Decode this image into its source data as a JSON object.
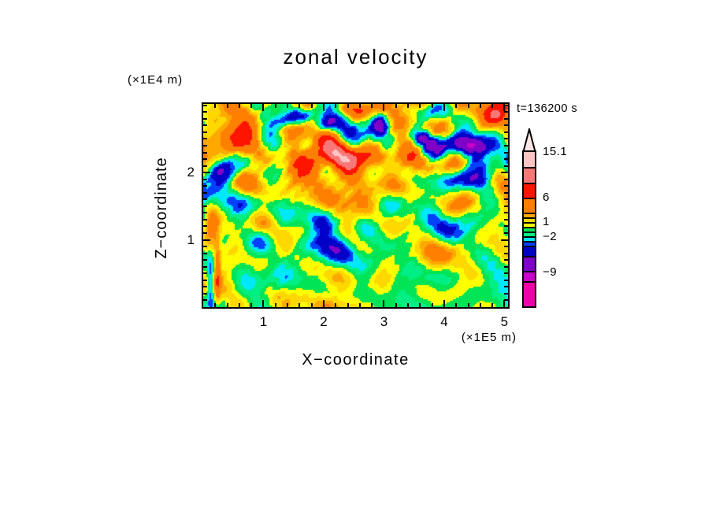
{
  "time_label": "t=136200 s",
  "chart_data": {
    "type": "filled_contour",
    "title": "zonal velocity",
    "xlabel": "X−coordinate",
    "ylabel": "Z−coordinate",
    "x_axis": {
      "unit": "(×1E5 m)",
      "range": [
        0,
        5.06
      ],
      "major_ticks": [
        1,
        2,
        3,
        4,
        5
      ],
      "minor_step": 0.2
    },
    "z_axis": {
      "unit": "(×1E4 m)",
      "range": [
        0,
        3.02
      ],
      "major_ticks": [
        1,
        2
      ],
      "minor_step": 0.1
    },
    "grid": false,
    "legend_position": "right-colorbar",
    "colorbar_max": 15.1,
    "colorbar_min": -16,
    "levels": [
      -11,
      -9,
      -6,
      -4,
      -3,
      -2,
      -1,
      0,
      1,
      2,
      3,
      6,
      9,
      12.1
    ],
    "colors": [
      "#f000a8",
      "#c800c8",
      "#8000c8",
      "#0000c8",
      "#0040ff",
      "#00e8ff",
      "#00ef85",
      "#00e455",
      "#ffff00",
      "#ffd800",
      "#ffa800",
      "#ff8000",
      "#ff1400",
      "#f87878",
      "#ffc4c4"
    ],
    "colorbar_labels": [
      {
        "text": "15.1",
        "value": 15.1
      },
      {
        "text": "6",
        "value": 6
      },
      {
        "text": "1",
        "value": 1
      },
      {
        "text": "−2",
        "value": -2
      },
      {
        "text": "−9",
        "value": -9
      }
    ],
    "tip_color": "#fbe6e6",
    "field": {
      "seed": 20,
      "n_modes": 60,
      "n_ripples": 8,
      "kx_max": 8,
      "kz_max": 6,
      "tilt_bias": 0.72,
      "sigma": 1.9,
      "env_base": 0.7,
      "env_grow": 0.95,
      "mean": 0.2
    },
    "features": [
      {
        "x": 0.28,
        "z": 2.02,
        "sx": 0.28,
        "sz": 0.18,
        "amp": -8,
        "rot": -8
      },
      {
        "x": 1.55,
        "z": 2.82,
        "sx": 0.38,
        "sz": 0.11,
        "amp": -6.5,
        "rot": -12
      },
      {
        "x": 2.02,
        "z": 2.72,
        "sx": 0.18,
        "sz": 0.1,
        "amp": -5,
        "rot": -25
      },
      {
        "x": 2.95,
        "z": 2.72,
        "sx": 0.13,
        "sz": 0.14,
        "amp": -6,
        "rot": 0
      },
      {
        "x": 4.38,
        "z": 2.42,
        "sx": 0.42,
        "sz": 0.14,
        "amp": -7.5,
        "rot": 4
      },
      {
        "x": 3.62,
        "z": 2.52,
        "sx": 0.17,
        "sz": 0.1,
        "amp": -5,
        "rot": 10
      },
      {
        "x": 2.35,
        "z": 2.22,
        "sx": 0.85,
        "sz": 0.17,
        "amp": 6.5,
        "rot": 3
      },
      {
        "x": 0.45,
        "z": 2.5,
        "sx": 0.28,
        "sz": 0.22,
        "amp": 5.5,
        "rot": 25
      },
      {
        "x": 4.72,
        "z": 2.78,
        "sx": 0.3,
        "sz": 0.2,
        "amp": 5.5,
        "rot": -20
      },
      {
        "x": 2.6,
        "z": 2.95,
        "sx": 0.45,
        "sz": 0.12,
        "amp": 4.5,
        "rot": 0
      },
      {
        "x": 0.14,
        "z": 1.22,
        "sx": 0.14,
        "sz": 0.38,
        "amp": 5,
        "rot": 0
      },
      {
        "x": 2.05,
        "z": 0.92,
        "sx": 0.38,
        "sz": 0.17,
        "amp": -3.8,
        "rot": 8
      },
      {
        "x": 3.95,
        "z": 1.12,
        "sx": 0.55,
        "sz": 0.22,
        "amp": -3.5,
        "rot": 4
      },
      {
        "x": 2.75,
        "z": 1.62,
        "sx": 0.45,
        "sz": 0.22,
        "amp": 4.5,
        "rot": 12
      },
      {
        "x": 4.25,
        "z": 1.92,
        "sx": 0.38,
        "sz": 0.16,
        "amp": -6,
        "rot": 0
      },
      {
        "x": 1.3,
        "z": 1.4,
        "sx": 0.45,
        "sz": 0.28,
        "amp": -3,
        "rot": 15
      },
      {
        "x": 1.7,
        "z": 1.95,
        "sx": 0.55,
        "sz": 0.25,
        "amp": 4.2,
        "rot": 18
      },
      {
        "x": 0.12,
        "z": 0.35,
        "sx": 0.05,
        "sz": 0.38,
        "amp": -4.5,
        "rot": 0
      },
      {
        "x": 0.24,
        "z": 0.5,
        "sx": 0.05,
        "sz": 0.45,
        "amp": 4.5,
        "rot": 0
      },
      {
        "x": 2.5,
        "z": 0.3,
        "sx": 2.2,
        "sz": 0.4,
        "amp": -0.8,
        "rot": 0
      },
      {
        "x": 2.5,
        "z": 2.55,
        "sx": 2.2,
        "sz": 0.55,
        "amp": 1.2,
        "rot": 0
      }
    ]
  }
}
